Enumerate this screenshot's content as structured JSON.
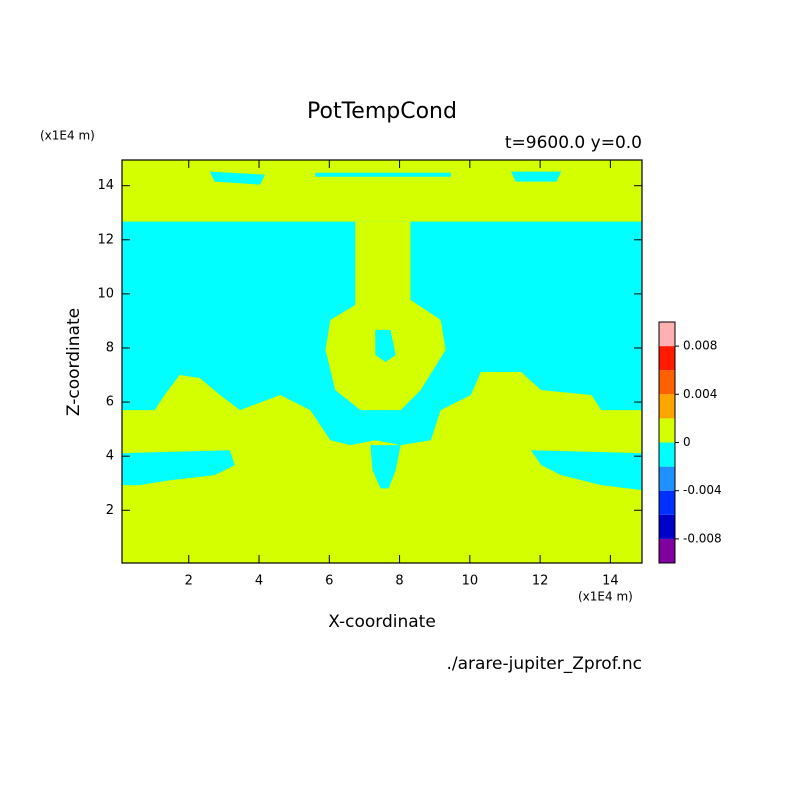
{
  "chart_data": {
    "type": "contourf",
    "title": "PotTempCond",
    "subtitle": "t=9600.0 y=0.0",
    "x_label": "X-coordinate",
    "y_label": "Z-coordinate",
    "x_unit": "(x1E4 m)",
    "y_unit": "(x1E4 m)",
    "source": "./arare-jupiter_Zprof.nc",
    "xlim": [
      0.1,
      14.9
    ],
    "ylim": [
      0.05,
      14.95
    ],
    "xticks": [
      2,
      4,
      6,
      8,
      10,
      12,
      14
    ],
    "yticks": [
      2,
      4,
      6,
      8,
      10,
      12,
      14
    ],
    "colorbar": {
      "levels": [
        -0.01,
        -0.008,
        -0.006,
        -0.004,
        -0.002,
        0,
        0.002,
        0.004,
        0.006,
        0.008,
        0.01
      ],
      "colors": [
        "#8000a0",
        "#0000c8",
        "#0030ff",
        "#1e90ff",
        "#00ffff",
        "#d4ff00",
        "#ffa500",
        "#ff6000",
        "#ff1a00",
        "#ffb0b0"
      ],
      "ticks": [
        0.008,
        0.004,
        0,
        -0.004,
        -0.008
      ]
    },
    "regions": [
      {
        "band": 5,
        "x": [
          0.1,
          14.9,
          14.9,
          0.1
        ],
        "z": [
          0.05,
          0.05,
          14.95,
          14.95
        ]
      },
      {
        "band": 4,
        "x": [
          0.1,
          14.94,
          14.94,
          13.74,
          13.46,
          12.03,
          11.46,
          10.31,
          10.03,
          9.17,
          8.89,
          8.03,
          7.31,
          6.6,
          6.03,
          5.46,
          4.6,
          3.46,
          2.89,
          2.31,
          1.74,
          1.31,
          1.03,
          0.1
        ],
        "z": [
          12.67,
          12.67,
          5.7,
          5.7,
          6.26,
          6.44,
          7.11,
          7.11,
          6.26,
          5.7,
          4.59,
          4.41,
          4.59,
          4.41,
          4.59,
          5.7,
          6.26,
          5.7,
          6.26,
          6.89,
          7.0,
          6.26,
          5.7,
          5.7
        ]
      },
      {
        "band": 5,
        "x": [
          6.74,
          8.31,
          8.31,
          9.17,
          9.31,
          8.6,
          8.03,
          6.89,
          6.17,
          5.89,
          6.03,
          6.74
        ],
        "z": [
          12.67,
          12.67,
          9.78,
          9.04,
          7.93,
          6.44,
          5.7,
          5.7,
          6.44,
          7.93,
          9.04,
          9.59
        ]
      },
      {
        "band": 4,
        "x": [
          7.31,
          7.74,
          7.89,
          7.6,
          7.31
        ],
        "z": [
          8.67,
          8.67,
          7.74,
          7.48,
          7.74
        ]
      },
      {
        "band": 4,
        "x": [
          0.1,
          3.17,
          3.31,
          2.74,
          1.46,
          0.6,
          0.1
        ],
        "z": [
          4.11,
          4.22,
          3.67,
          3.3,
          3.11,
          2.93,
          2.93
        ]
      },
      {
        "band": 4,
        "x": [
          11.74,
          14.94,
          14.94,
          13.74,
          12.6,
          12.03
        ],
        "z": [
          4.22,
          4.11,
          2.74,
          2.93,
          3.3,
          3.67
        ]
      },
      {
        "band": 4,
        "x": [
          7.17,
          8.03,
          7.89,
          7.69,
          7.46,
          7.23
        ],
        "z": [
          4.41,
          4.41,
          3.48,
          2.81,
          2.81,
          3.48
        ]
      },
      {
        "band": 4,
        "x": [
          2.6,
          4.17,
          4.03,
          2.74
        ],
        "z": [
          14.52,
          14.41,
          14.04,
          14.15
        ]
      },
      {
        "band": 4,
        "x": [
          11.17,
          12.6,
          12.46,
          11.31
        ],
        "z": [
          14.52,
          14.52,
          14.15,
          14.15
        ]
      },
      {
        "band": 4,
        "x": [
          5.6,
          9.46,
          9.46,
          5.6
        ],
        "z": [
          14.48,
          14.48,
          14.33,
          14.33
        ]
      }
    ]
  }
}
